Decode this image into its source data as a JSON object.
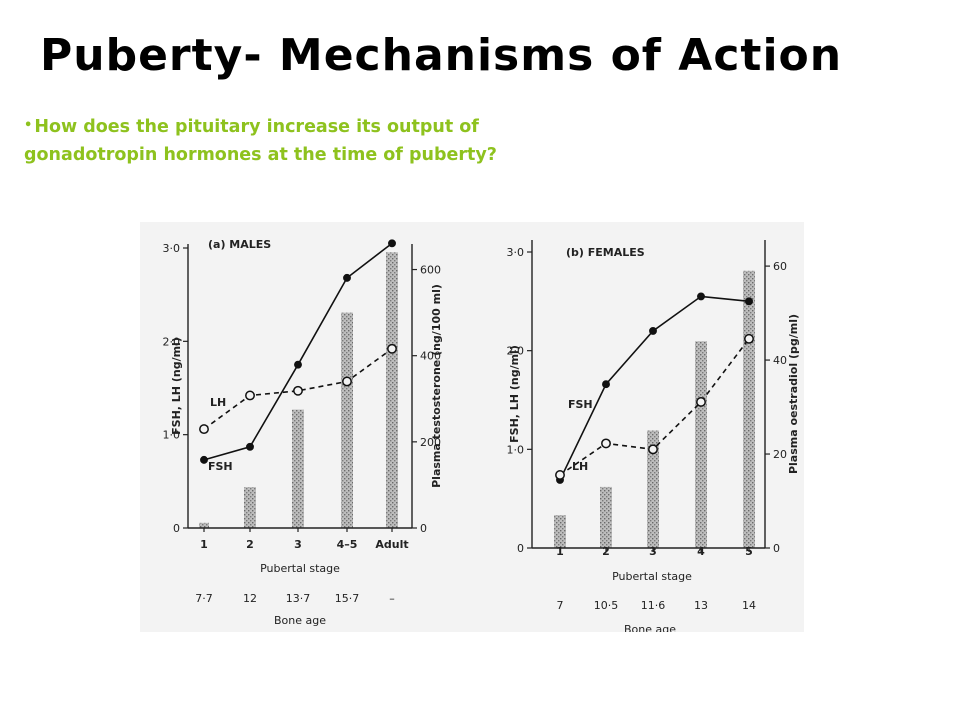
{
  "slide": {
    "title": "Puberty- Mechanisms of Action",
    "bullet": "How does  the pituitary increase its output of gonadotropin hormones at the time of puberty?",
    "bullet_color": "#8ec21e"
  },
  "chart_data": [
    {
      "type": "line",
      "panel_label": "(a)  MALES",
      "categories": [
        "1",
        "2",
        "3",
        "4–5",
        "Adult"
      ],
      "xlabel": "Pubertal stage",
      "bone_age_label": "Bone age",
      "bone_age": [
        "7·7",
        "12",
        "13·7",
        "15·7",
        "–"
      ],
      "ylabel": "FSH, LH (ng/ml)",
      "ylim": [
        0,
        3
      ],
      "yticks": [
        "0",
        "1·0",
        "2·0",
        "3·0"
      ],
      "y2label": "Plasma testosterone (ng/100 ml)",
      "y2lim": [
        0,
        650
      ],
      "y2ticks": [
        "0",
        "200",
        "400",
        "600"
      ],
      "series": [
        {
          "name": "FSH",
          "kind": "line-solid-filled",
          "values": [
            0.73,
            0.87,
            1.75,
            2.68,
            3.05
          ]
        },
        {
          "name": "LH",
          "kind": "line-dashed-open",
          "values": [
            1.06,
            1.42,
            1.47,
            1.57,
            1.92
          ]
        },
        {
          "kind": "bar-secondary",
          "values": [
            12,
            95,
            275,
            500,
            640
          ]
        }
      ]
    },
    {
      "type": "line",
      "panel_label": "(b)  FEMALES",
      "categories": [
        "1",
        "2",
        "3",
        "4",
        "5"
      ],
      "xlabel": "Pubertal stage",
      "bone_age_label": "Bone age",
      "bone_age": [
        "7",
        "10·5",
        "11·6",
        "13",
        "14"
      ],
      "ylabel": "FSH, LH (ng/ml)",
      "ylim": [
        0,
        3
      ],
      "yticks": [
        "0",
        "1·0",
        "2·0",
        "3·0"
      ],
      "y2label": "Plasma oestradiol (pg/ml)",
      "y2lim": [
        0,
        63
      ],
      "y2ticks": [
        "0",
        "20",
        "40",
        "60"
      ],
      "series": [
        {
          "name": "FSH",
          "kind": "line-solid-filled",
          "values": [
            0.69,
            1.66,
            2.2,
            2.55,
            2.5
          ]
        },
        {
          "name": "LH",
          "kind": "line-dashed-open",
          "values": [
            0.74,
            1.06,
            1.0,
            1.48,
            2.12
          ]
        },
        {
          "kind": "bar-secondary",
          "values": [
            7,
            13,
            25,
            44,
            59
          ]
        }
      ]
    }
  ]
}
